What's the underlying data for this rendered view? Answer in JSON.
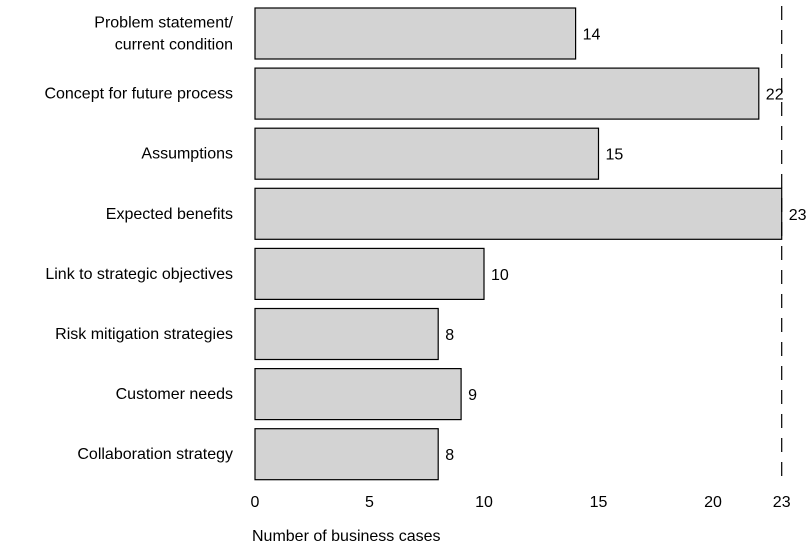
{
  "chart_data": {
    "type": "bar",
    "orientation": "horizontal",
    "categories": [
      "Problem statement/\ncurrent condition",
      "Concept for future process",
      "Assumptions",
      "Expected benefits",
      "Link to strategic objectives",
      "Risk mitigation strategies",
      "Customer needs",
      "Collaboration strategy"
    ],
    "values": [
      14,
      22,
      15,
      23,
      10,
      8,
      9,
      8
    ],
    "xlabel": "Number of business cases",
    "ylabel": "",
    "title": "",
    "xlim": [
      0,
      23
    ],
    "xticks": [
      0,
      5,
      10,
      15,
      20,
      23
    ],
    "reference_line": {
      "x": 23,
      "style": "dashed"
    },
    "data_labels": true,
    "grid": false,
    "legend": "none",
    "colors": {
      "bar_fill": "#d3d3d3",
      "bar_stroke": "#000000",
      "text": "#000000"
    }
  }
}
